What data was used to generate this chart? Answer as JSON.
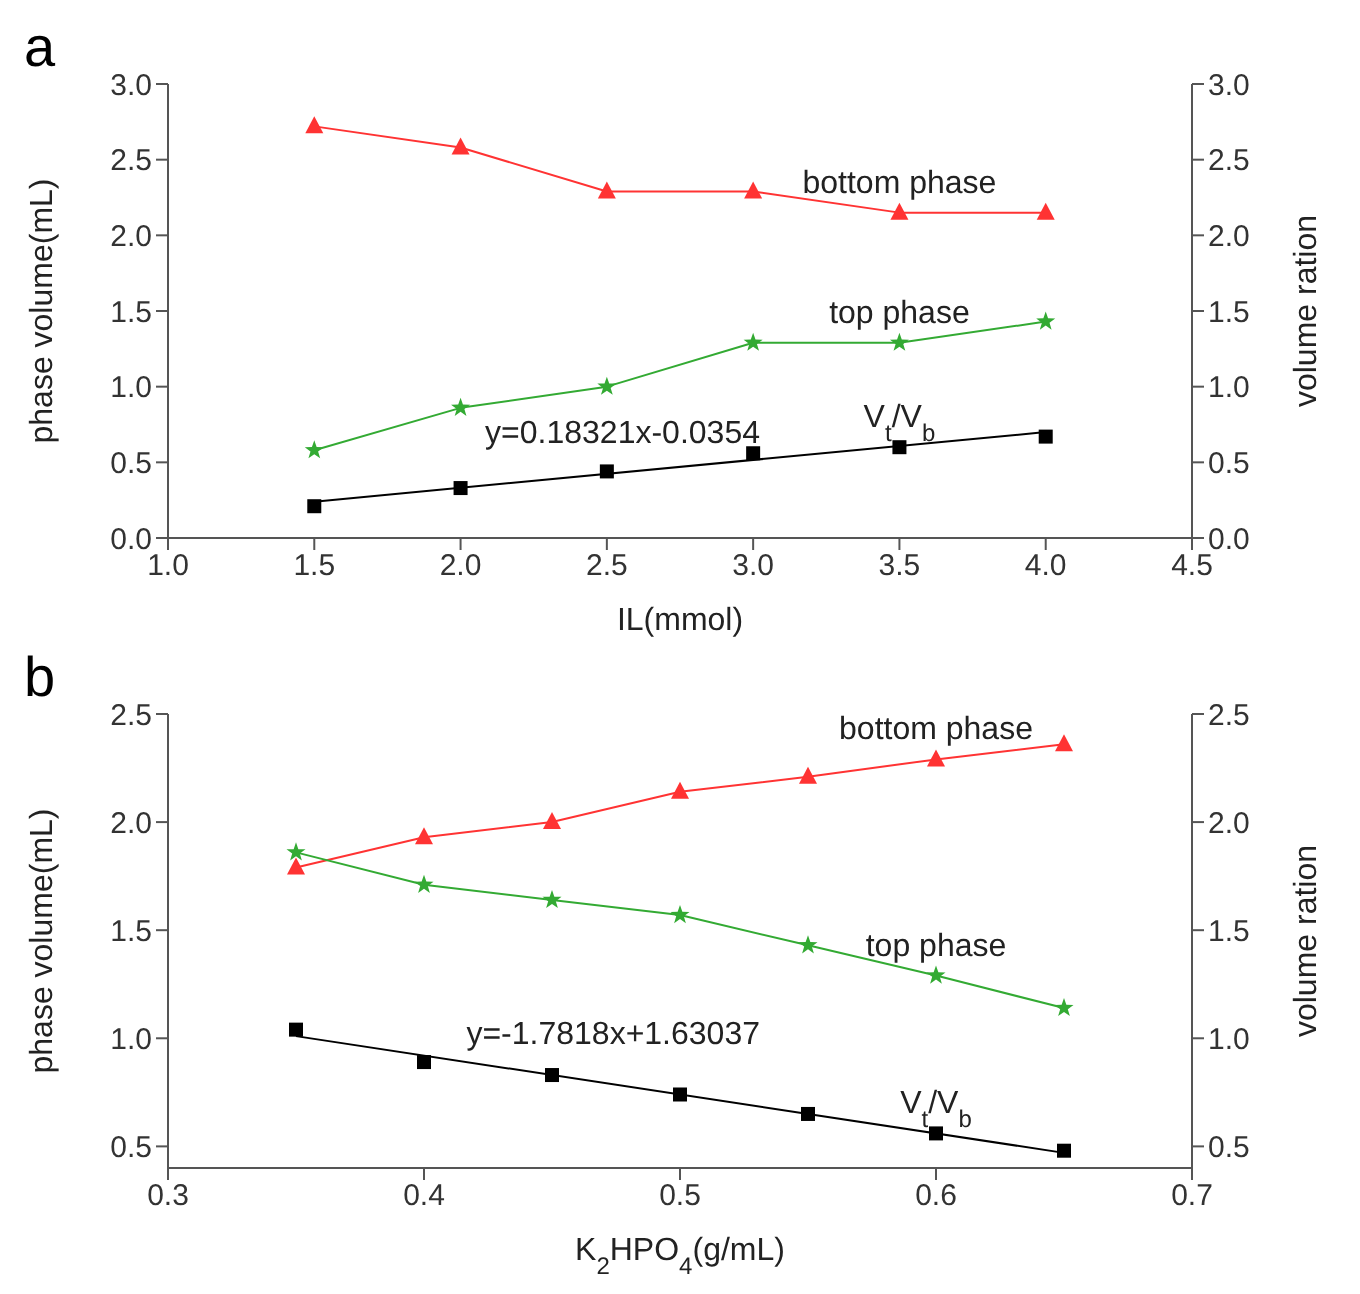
{
  "chart_data": [
    {
      "type": "line",
      "title": "a",
      "xlabel": "IL(mmol)",
      "ylabel": "phase volume(mL)",
      "y2label": "volume ration",
      "x": [
        1.5,
        2.0,
        2.5,
        3.0,
        3.5,
        4.0
      ],
      "xlim": [
        1.0,
        4.5
      ],
      "xticks": [
        {
          "value": 1,
          "label": "1.0"
        },
        1.5,
        {
          "value": 2,
          "label": "2.0"
        },
        2.5,
        {
          "value": 3,
          "label": "3.0"
        },
        3.5,
        {
          "value": 4,
          "label": "4.0"
        },
        4.5
      ],
      "ylim": [
        0,
        3
      ],
      "yticks": [
        {
          "value": 0,
          "label": "0.0"
        },
        0.5,
        {
          "value": 1,
          "label": "1.0"
        },
        1.5,
        {
          "value": 2,
          "label": "2.0"
        },
        2.5,
        {
          "value": 3,
          "label": "3.0"
        }
      ],
      "y2lim": [
        0,
        3
      ],
      "y2ticks": [
        {
          "value": 0,
          "label": "0.0"
        },
        0.5,
        {
          "value": 1,
          "label": "1.0"
        },
        1.5,
        {
          "value": 2,
          "label": "2.0"
        },
        2.5,
        {
          "value": 3,
          "label": "3.0"
        }
      ],
      "grid": false,
      "series": [
        {
          "name": "bottom phase",
          "color": "#ff3333",
          "marker": "triangle",
          "values": [
            2.72,
            2.58,
            2.29,
            2.29,
            2.15,
            2.15
          ]
        },
        {
          "name": "top phase",
          "color": "#33aa33",
          "marker": "star",
          "values": [
            0.58,
            0.86,
            1.0,
            1.29,
            1.29,
            1.43
          ]
        },
        {
          "name": "V$_{t}$/V$_{b}$",
          "type": "scatter",
          "color": "#000000",
          "marker": "square",
          "values": [
            0.21,
            0.33,
            0.44,
            0.56,
            0.6,
            0.67
          ]
        },
        {
          "type": "line",
          "color": "#000000",
          "marker": "none",
          "x": [
            1.5,
            4.0
          ],
          "values": [
            0.24,
            0.7
          ]
        }
      ],
      "annotations": [
        "y=0.18321x-0.0354"
      ]
    },
    {
      "type": "line",
      "title": "b",
      "xlabel": "K$_{2}$HPO$_{4}$(g/mL)",
      "ylabel": "phase volume(mL)",
      "y2label": "volume ration",
      "x": [
        0.35,
        0.4,
        0.45,
        0.5,
        0.55,
        0.6,
        0.65
      ],
      "xlim": [
        0.3,
        0.7
      ],
      "xticks": [
        0.3,
        0.4,
        0.5,
        0.6,
        0.7
      ],
      "ylim": [
        0.4,
        2.5
      ],
      "yticks": [
        0.5,
        {
          "value": 1,
          "label": "1.0"
        },
        1.5,
        {
          "value": 2,
          "label": "2.0"
        },
        2.5
      ],
      "y2lim": [
        0.4,
        2.5
      ],
      "y2ticks": [
        0.5,
        {
          "value": 1,
          "label": "1.0"
        },
        1.5,
        {
          "value": 2,
          "label": "2.0"
        },
        2.5
      ],
      "grid": false,
      "series": [
        {
          "name": "bottom phase",
          "color": "#ff3333",
          "marker": "triangle",
          "values": [
            1.79,
            1.93,
            2.0,
            2.14,
            2.21,
            2.29,
            2.36
          ]
        },
        {
          "name": "top phase",
          "color": "#33aa33",
          "marker": "star",
          "values": [
            1.86,
            1.71,
            1.64,
            1.57,
            1.43,
            1.29,
            1.14
          ]
        },
        {
          "name": "V$_{t}$/V$_{b}$",
          "type": "scatter",
          "color": "#000000",
          "marker": "square",
          "values": [
            1.04,
            0.89,
            0.83,
            0.74,
            0.65,
            0.56,
            0.48
          ]
        },
        {
          "type": "line",
          "color": "#000000",
          "marker": "none",
          "x": [
            0.35,
            0.65
          ],
          "values": [
            1.01,
            0.47
          ]
        }
      ],
      "annotations": [
        "y=-1.7818x+1.63037"
      ]
    }
  ]
}
